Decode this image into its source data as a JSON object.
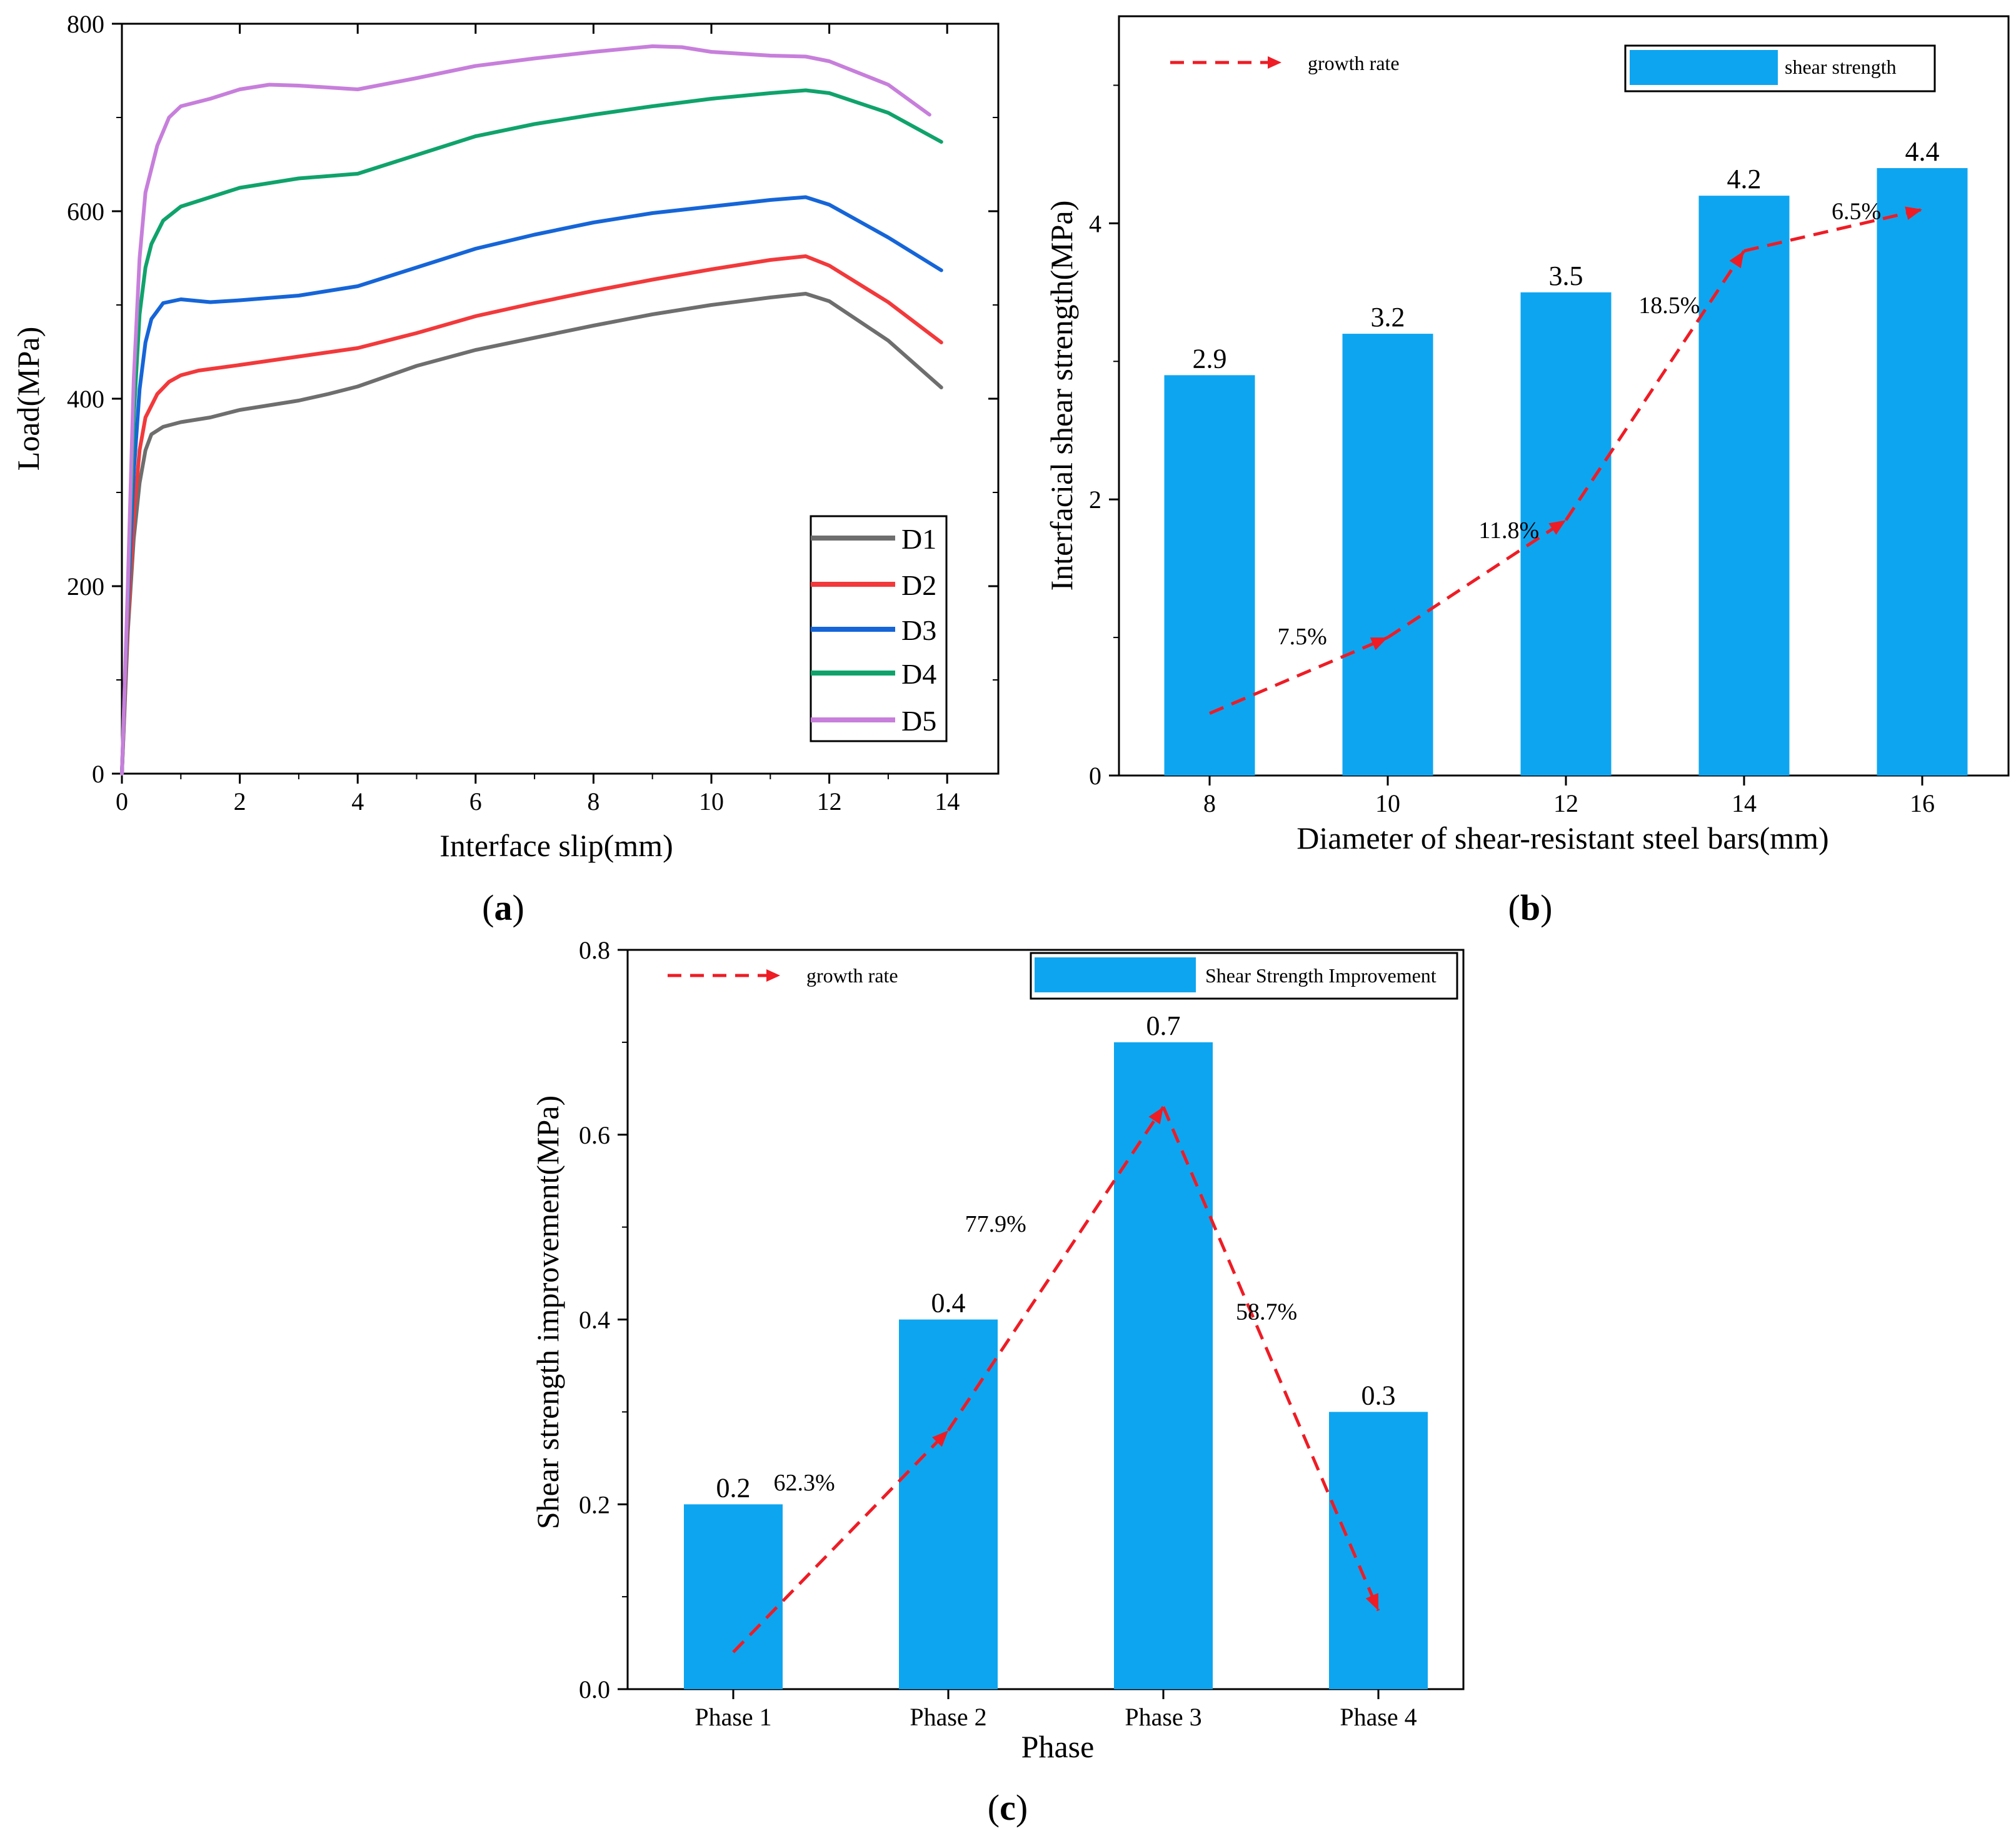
{
  "chart_data": [
    {
      "panel": "a",
      "panel_label": "a",
      "type": "line",
      "xlabel": "Interface slip(mm)",
      "ylabel": "Load(MPa)",
      "xlim": [
        0,
        15
      ],
      "ylim": [
        0,
        800
      ],
      "xticks": [
        0,
        2,
        4,
        6,
        8,
        10,
        12,
        14
      ],
      "yticks": [
        0,
        200,
        400,
        600,
        800
      ],
      "legend": "bottom-right",
      "series": [
        {
          "name": "D1",
          "color": "#6e6e6e",
          "points": [
            [
              0,
              0
            ],
            [
              0.1,
              150
            ],
            [
              0.2,
              250
            ],
            [
              0.3,
              310
            ],
            [
              0.4,
              345
            ],
            [
              0.5,
              362
            ],
            [
              0.7,
              370
            ],
            [
              1,
              375
            ],
            [
              1.5,
              380
            ],
            [
              2,
              388
            ],
            [
              3,
              398
            ],
            [
              3.5,
              405
            ],
            [
              4,
              413
            ],
            [
              5,
              435
            ],
            [
              6,
              452
            ],
            [
              7,
              465
            ],
            [
              8,
              478
            ],
            [
              9,
              490
            ],
            [
              10,
              500
            ],
            [
              11,
              508
            ],
            [
              11.6,
              512
            ],
            [
              12,
              504
            ],
            [
              13,
              462
            ],
            [
              13.9,
              412
            ]
          ]
        },
        {
          "name": "D2",
          "color": "#f2393b",
          "points": [
            [
              0,
              0
            ],
            [
              0.1,
              160
            ],
            [
              0.2,
              275
            ],
            [
              0.3,
              345
            ],
            [
              0.4,
              380
            ],
            [
              0.6,
              405
            ],
            [
              0.8,
              418
            ],
            [
              1,
              425
            ],
            [
              1.3,
              430
            ],
            [
              2,
              436
            ],
            [
              3,
              445
            ],
            [
              4,
              454
            ],
            [
              5,
              470
            ],
            [
              6,
              488
            ],
            [
              7,
              502
            ],
            [
              8,
              515
            ],
            [
              9,
              527
            ],
            [
              10,
              538
            ],
            [
              11,
              548
            ],
            [
              11.6,
              552
            ],
            [
              12,
              542
            ],
            [
              13,
              503
            ],
            [
              13.9,
              460
            ]
          ]
        },
        {
          "name": "D3",
          "color": "#1565d8",
          "points": [
            [
              0,
              0
            ],
            [
              0.1,
              180
            ],
            [
              0.2,
              320
            ],
            [
              0.3,
              410
            ],
            [
              0.4,
              460
            ],
            [
              0.5,
              485
            ],
            [
              0.7,
              502
            ],
            [
              1,
              506
            ],
            [
              1.5,
              503
            ],
            [
              2,
              505
            ],
            [
              3,
              510
            ],
            [
              4,
              520
            ],
            [
              5,
              540
            ],
            [
              6,
              560
            ],
            [
              7,
              575
            ],
            [
              8,
              588
            ],
            [
              9,
              598
            ],
            [
              10,
              605
            ],
            [
              11,
              612
            ],
            [
              11.6,
              615
            ],
            [
              12,
              607
            ],
            [
              13,
              572
            ],
            [
              13.9,
              537
            ]
          ]
        },
        {
          "name": "D4",
          "color": "#0fa36b",
          "points": [
            [
              0,
              0
            ],
            [
              0.1,
              190
            ],
            [
              0.2,
              380
            ],
            [
              0.3,
              490
            ],
            [
              0.4,
              540
            ],
            [
              0.5,
              565
            ],
            [
              0.7,
              590
            ],
            [
              1,
              605
            ],
            [
              1.5,
              615
            ],
            [
              2,
              625
            ],
            [
              3,
              635
            ],
            [
              4,
              640
            ],
            [
              5,
              660
            ],
            [
              6,
              680
            ],
            [
              7,
              693
            ],
            [
              8,
              703
            ],
            [
              9,
              712
            ],
            [
              10,
              720
            ],
            [
              11,
              726
            ],
            [
              11.6,
              729
            ],
            [
              12,
              726
            ],
            [
              13,
              705
            ],
            [
              13.9,
              674
            ]
          ]
        },
        {
          "name": "D5",
          "color": "#c77fdb",
          "points": [
            [
              0,
              0
            ],
            [
              0.1,
              200
            ],
            [
              0.2,
              420
            ],
            [
              0.3,
              550
            ],
            [
              0.4,
              620
            ],
            [
              0.6,
              670
            ],
            [
              0.8,
              700
            ],
            [
              1,
              712
            ],
            [
              1.5,
              720
            ],
            [
              2,
              730
            ],
            [
              2.5,
              735
            ],
            [
              3,
              734
            ],
            [
              4,
              730
            ],
            [
              5,
              742
            ],
            [
              6,
              755
            ],
            [
              7,
              763
            ],
            [
              8,
              770
            ],
            [
              9,
              776
            ],
            [
              9.5,
              775
            ],
            [
              10,
              770
            ],
            [
              11,
              766
            ],
            [
              11.6,
              765
            ],
            [
              12,
              760
            ],
            [
              13,
              735
            ],
            [
              13.7,
              703
            ]
          ]
        }
      ]
    },
    {
      "panel": "b",
      "panel_label": "b",
      "type": "bar",
      "xlabel": "Diameter of shear-resistant steel bars(mm)",
      "ylabel": "Interfacial shear strength(MPa)",
      "categories": [
        "8",
        "10",
        "12",
        "14",
        "16"
      ],
      "values": [
        2.9,
        3.2,
        3.5,
        4.2,
        4.4
      ],
      "value_labels": [
        "2.9",
        "3.2",
        "3.5",
        "4.2",
        "4.4"
      ],
      "ylim": [
        0,
        5.5
      ],
      "yticks": [
        0,
        2,
        4
      ],
      "bar_color": "#0ea5f0",
      "legend": {
        "bar": "shear strength",
        "line": "growth rate",
        "line_color": "#ee1c25"
      },
      "growth_line": {
        "x": [
          0,
          1,
          2,
          3,
          4
        ],
        "y": [
          0.45,
          1.0,
          1.85,
          3.8,
          4.1
        ]
      },
      "growth_labels": [
        {
          "text": "7.5%",
          "x": 0.52,
          "y": 0.95
        },
        {
          "text": "11.8%",
          "x": 1.68,
          "y": 1.72
        },
        {
          "text": "18.5%",
          "x": 2.58,
          "y": 3.35
        },
        {
          "text": "6.5%",
          "x": 3.63,
          "y": 4.03
        }
      ]
    },
    {
      "panel": "c",
      "panel_label": "c",
      "type": "bar",
      "xlabel": "Phase",
      "ylabel": "Shear strength improvement(MPa)",
      "categories": [
        "Phase 1",
        "Phase 2",
        "Phase 3",
        "Phase 4"
      ],
      "values": [
        0.2,
        0.4,
        0.7,
        0.3
      ],
      "value_labels": [
        "0.2",
        "0.4",
        "0.7",
        "0.3"
      ],
      "ylim": [
        0,
        0.8
      ],
      "yticks": [
        "0.0",
        "0.2",
        "0.4",
        "0.6",
        "0.8"
      ],
      "bar_color": "#0ea5f0",
      "legend": {
        "bar": "Shear Strength Improvement",
        "line": "growth rate",
        "line_color": "#ee1c25"
      },
      "growth_line": {
        "x": [
          0,
          1,
          2,
          3
        ],
        "y": [
          0.04,
          0.28,
          0.63,
          0.085
        ]
      },
      "growth_labels": [
        {
          "text": "62.3%",
          "x": 0.33,
          "y": 0.215
        },
        {
          "text": "77.9%",
          "x": 1.22,
          "y": 0.495
        },
        {
          "text": "58.7%",
          "x": 2.48,
          "y": 0.4
        }
      ]
    }
  ]
}
